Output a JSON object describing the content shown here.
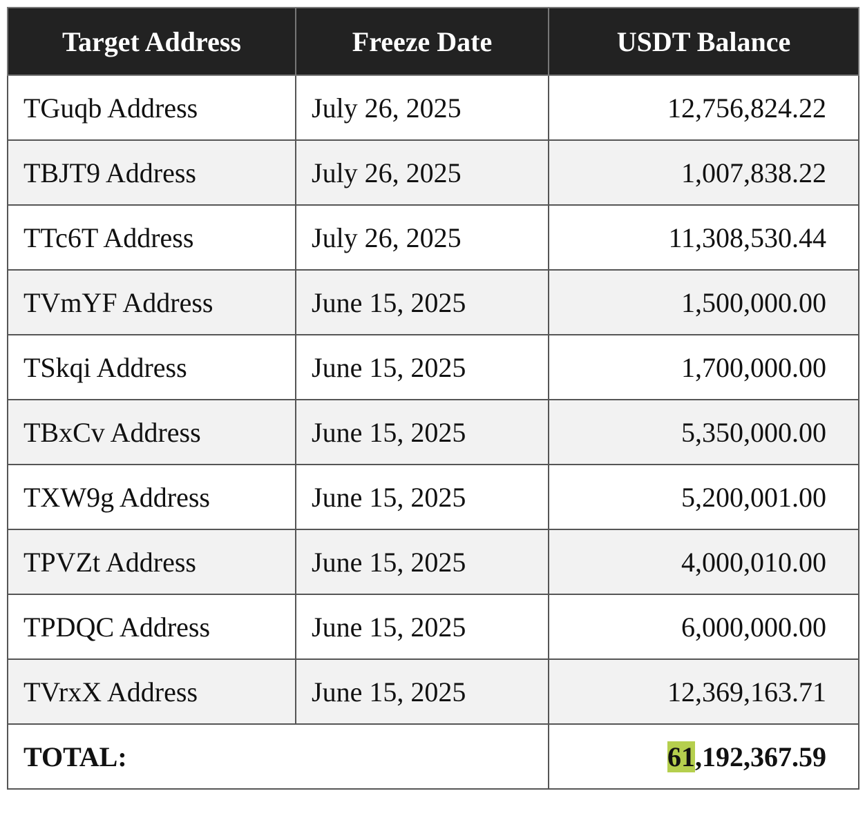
{
  "table": {
    "header": [
      "Target Address",
      "Freeze Date",
      "USDT Balance"
    ],
    "rows": [
      [
        "TGuqb Address",
        "July 26, 2025",
        "12,756,824.22"
      ],
      [
        "TBJT9 Address",
        "July 26, 2025",
        "1,007,838.22"
      ],
      [
        "TTc6T Address",
        "July 26, 2025",
        "11,308,530.44"
      ],
      [
        "TVmYF Address",
        "June 15, 2025",
        "1,500,000.00"
      ],
      [
        "TSkqi Address",
        "June 15, 2025",
        "1,700,000.00"
      ],
      [
        "TBxCv Address",
        "June 15, 2025",
        "5,350,000.00"
      ],
      [
        "TXW9g Address",
        "June 15, 2025",
        "5,200,001.00"
      ],
      [
        "TPVZt Address",
        "June 15, 2025",
        "4,000,010.00"
      ],
      [
        "TPDQC Address",
        "June 15, 2025",
        "6,000,000.00"
      ],
      [
        "TVrxX Address",
        "June 15, 2025",
        "12,369,163.71"
      ]
    ],
    "total": {
      "label": "TOTAL:",
      "value": "61,192,367.59"
    }
  }
}
